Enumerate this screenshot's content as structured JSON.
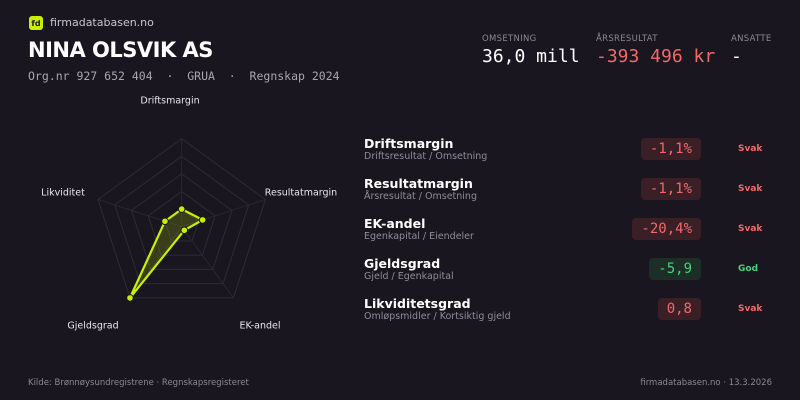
{
  "brand": {
    "logo": "fd",
    "name": "firmadatabasen.no"
  },
  "company": {
    "name": "NINA OLSVIK AS",
    "subtitle": "Org.nr 927 652 404  ·  GRUA  ·  Regnskap 2024"
  },
  "kpis": [
    {
      "label": "OMSETNING",
      "value": "36,0 mill",
      "color": "#ffffff"
    },
    {
      "label": "ÅRSRESULTAT",
      "value": "-393 496 kr",
      "color": "#f06a6a"
    },
    {
      "label": "ANSATTE",
      "value": "-",
      "color": "#ffffff"
    }
  ],
  "chart_data": {
    "type": "radar",
    "axes": [
      "Driftsmargin",
      "Resultatmargin",
      "EK-andel",
      "Gjeldsgrad",
      "Likviditet"
    ],
    "values": [
      0.2,
      0.25,
      0.05,
      1.0,
      0.2
    ],
    "range": [
      0,
      1
    ],
    "rings": 5,
    "color": "#c8f000"
  },
  "metrics": [
    {
      "name": "Driftsmargin",
      "formula": "Driftsresultat / Omsetning",
      "value": "-1,1%",
      "status": "Svak",
      "tone": "bad"
    },
    {
      "name": "Resultatmargin",
      "formula": "Årsresultat / Omsetning",
      "value": "-1,1%",
      "status": "Svak",
      "tone": "bad"
    },
    {
      "name": "EK-andel",
      "formula": "Egenkapital / Eiendeler",
      "value": "-20,4%",
      "status": "Svak",
      "tone": "bad"
    },
    {
      "name": "Gjeldsgrad",
      "formula": "Gjeld / Egenkapital",
      "value": "-5,9",
      "status": "God",
      "tone": "good"
    },
    {
      "name": "Likviditetsgrad",
      "formula": "Omløpsmidler / Kortsiktig gjeld",
      "value": "0,8",
      "status": "Svak",
      "tone": "bad"
    }
  ],
  "footer": {
    "source": "Kilde: Brønnøysundregistrene · Regnskapsregisteret",
    "site": "firmadatabasen.no · 13.3.2026"
  }
}
